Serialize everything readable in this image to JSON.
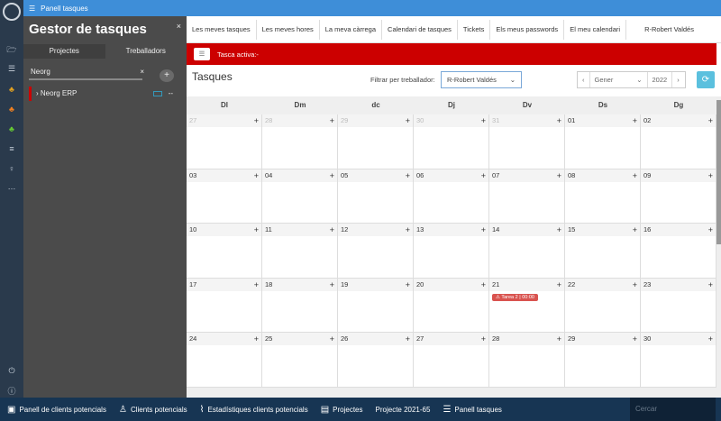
{
  "window": {
    "title": "Panell tasques",
    "title_icon": "tasks-list-icon"
  },
  "rail": {
    "icons": [
      "folder-icon",
      "list-icon",
      "org-chart-icon",
      "org-chart-orange-icon",
      "org-chart-green-icon",
      "menu-icon",
      "lightbulb-icon",
      "more-icon",
      "power-icon",
      "info-icon"
    ]
  },
  "sidebar": {
    "title": "Gestor de tasques",
    "close": "×",
    "tabs": [
      "Projectes",
      "Treballadors"
    ],
    "search_value": "Neorg",
    "clear": "×",
    "add": "+",
    "projects": [
      {
        "name": "Neorg ERP",
        "expand": "›",
        "menu": "--"
      }
    ]
  },
  "nav": {
    "tabs": [
      "Les meves tasques",
      "Les meves hores",
      "La meva càrrega",
      "Calendari de tasques",
      "Tickets",
      "Els meus passwords",
      "El meu calendari"
    ],
    "user": "R-Robert Valdés"
  },
  "active_task": {
    "label": "Tasca activa:-",
    "menu": "☰"
  },
  "toolbar": {
    "title": "Tasques",
    "filter_label": "Filtrar per treballador:",
    "filter_value": "R-Robert Valdés",
    "month": "Gener",
    "year": "2022",
    "prev": "‹",
    "next": "›",
    "refresh": "⟳",
    "caret": "⌄"
  },
  "calendar": {
    "days": [
      "Dl",
      "Dm",
      "dc",
      "Dj",
      "Dv",
      "Ds",
      "Dg"
    ],
    "weeks": [
      [
        {
          "d": "27",
          "o": true
        },
        {
          "d": "28",
          "o": true
        },
        {
          "d": "29",
          "o": true
        },
        {
          "d": "30",
          "o": true
        },
        {
          "d": "31",
          "o": true
        },
        {
          "d": "01"
        },
        {
          "d": "02"
        }
      ],
      [
        {
          "d": "03"
        },
        {
          "d": "04"
        },
        {
          "d": "05"
        },
        {
          "d": "06"
        },
        {
          "d": "07"
        },
        {
          "d": "08"
        },
        {
          "d": "09"
        }
      ],
      [
        {
          "d": "10"
        },
        {
          "d": "11"
        },
        {
          "d": "12"
        },
        {
          "d": "13"
        },
        {
          "d": "14"
        },
        {
          "d": "15"
        },
        {
          "d": "16"
        }
      ],
      [
        {
          "d": "17"
        },
        {
          "d": "18"
        },
        {
          "d": "19"
        },
        {
          "d": "20"
        },
        {
          "d": "21",
          "event": "⚠ Tarea 2 | 00:00"
        },
        {
          "d": "22"
        },
        {
          "d": "23"
        }
      ],
      [
        {
          "d": "24"
        },
        {
          "d": "25"
        },
        {
          "d": "26"
        },
        {
          "d": "27"
        },
        {
          "d": "28"
        },
        {
          "d": "29"
        },
        {
          "d": "30"
        }
      ]
    ],
    "event_color": "#d9534f"
  },
  "taskbar": {
    "items": [
      {
        "icon": "leads-panel-icon",
        "glyph": "▣",
        "label": "Panell de clients potencials"
      },
      {
        "icon": "add-user-icon",
        "glyph": "♙",
        "label": "Clients potencials"
      },
      {
        "icon": "chart-icon",
        "glyph": "⌇",
        "label": "Estadístiques clients potencials"
      },
      {
        "icon": "document-icon",
        "glyph": "▤",
        "label": "Projectes"
      },
      {
        "icon": "",
        "glyph": "",
        "label": "Projecte 2021-65"
      },
      {
        "icon": "tasks-list-icon",
        "glyph": "☰",
        "label": "Panell tasques"
      }
    ],
    "search_placeholder": "Cercar"
  },
  "colors": {
    "titlebar": "#3e8ed8",
    "active_bar": "#cc0000",
    "taskbar": "#173553",
    "sidebar": "#4b4b4b"
  }
}
